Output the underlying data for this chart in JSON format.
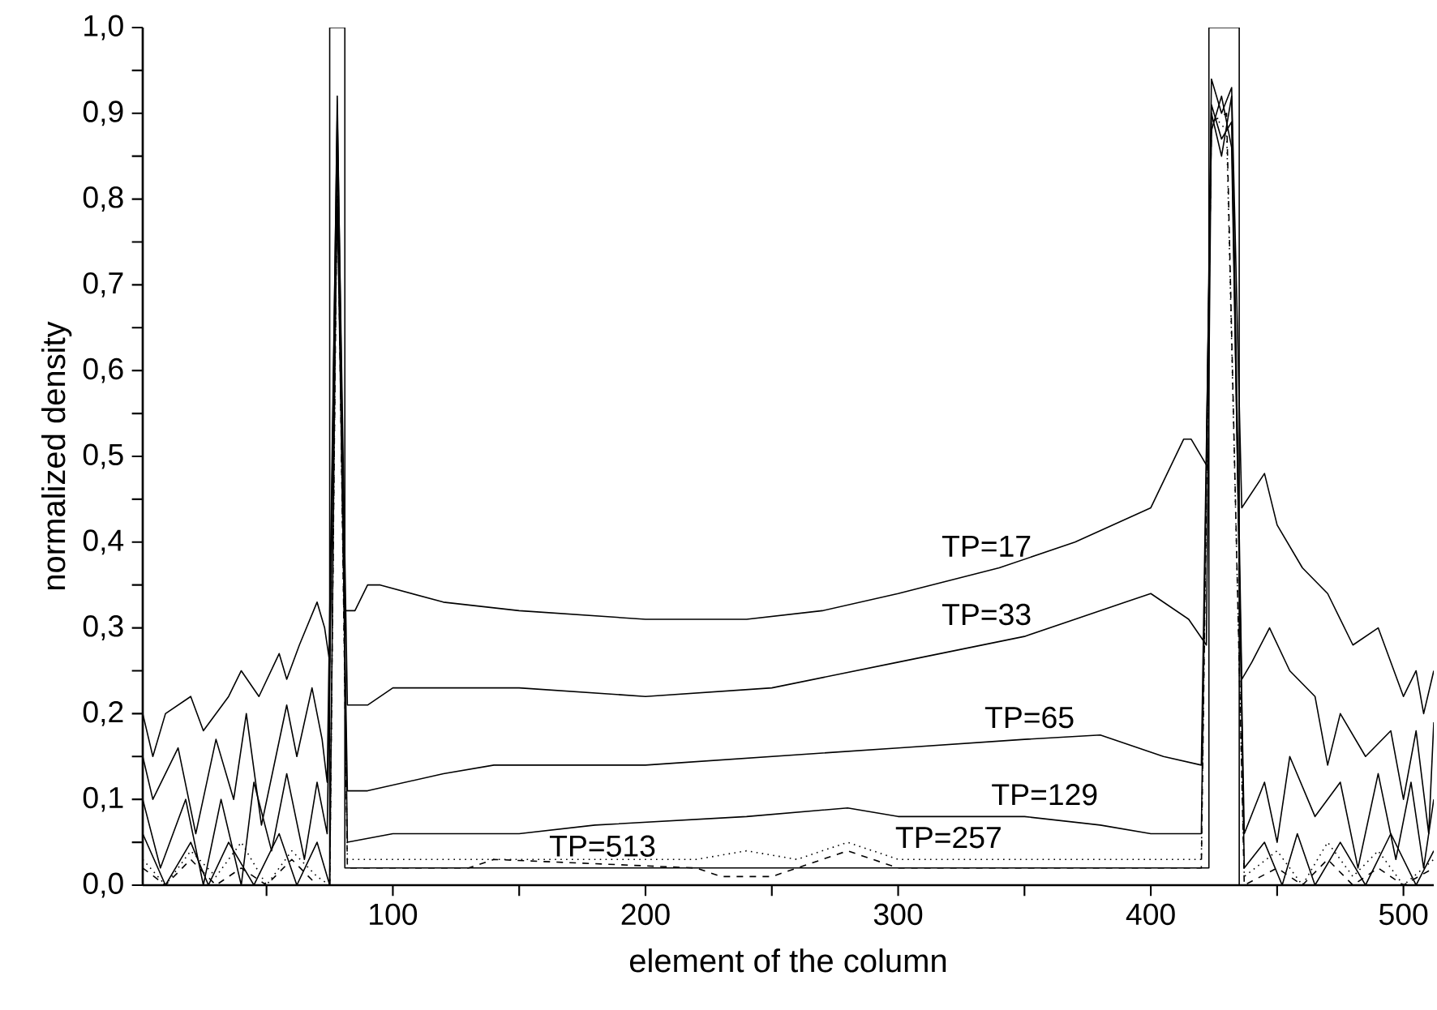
{
  "chart_data": {
    "type": "line",
    "xlabel": "element of the column",
    "ylabel": "normalized density",
    "xlim": [
      1,
      512
    ],
    "ylim": [
      0,
      1
    ],
    "xticks": [
      {
        "value": 50,
        "label": null
      },
      100,
      {
        "value": 150,
        "label": null
      },
      200,
      {
        "value": 250,
        "label": null
      },
      300,
      {
        "value": 350,
        "label": null
      },
      400,
      {
        "value": 450,
        "label": null
      },
      500
    ],
    "yticks": [
      {
        "value": 0,
        "label": "0,0"
      },
      {
        "value": 0.05,
        "label": null
      },
      {
        "value": 0.1,
        "label": "0,1"
      },
      {
        "value": 0.15,
        "label": null
      },
      {
        "value": 0.2,
        "label": "0,2"
      },
      {
        "value": 0.25,
        "label": null
      },
      {
        "value": 0.3,
        "label": "0,3"
      },
      {
        "value": 0.35,
        "label": null
      },
      {
        "value": 0.4,
        "label": "0,4"
      },
      {
        "value": 0.45,
        "label": null
      },
      {
        "value": 0.5,
        "label": "0,5"
      },
      {
        "value": 0.55,
        "label": null
      },
      {
        "value": 0.6,
        "label": "0,6"
      },
      {
        "value": 0.65,
        "label": null
      },
      {
        "value": 0.7,
        "label": "0,7"
      },
      {
        "value": 0.75,
        "label": null
      },
      {
        "value": 0.8,
        "label": "0,8"
      },
      {
        "value": 0.85,
        "label": null
      },
      {
        "value": 0.9,
        "label": "0,9"
      },
      {
        "value": 0.95,
        "label": null
      },
      {
        "value": 1,
        "label": "1,0"
      }
    ],
    "marker": "none",
    "series": [
      {
        "color": "#000000",
        "line_style": "solid",
        "x": [
          75,
          75,
          81,
          81,
          423,
          423,
          435,
          435
        ],
        "values": [
          0,
          1,
          1,
          0.02,
          0.02,
          1,
          1,
          0
        ]
      },
      {
        "name": "TP=17",
        "color": "#000000",
        "line_style": "solid",
        "x": [
          1,
          5,
          10,
          20,
          25,
          35,
          40,
          47,
          55,
          58,
          63,
          70,
          73,
          75,
          78,
          81,
          85,
          90,
          95,
          120,
          150,
          200,
          240,
          270,
          300,
          340,
          370,
          400,
          413,
          416,
          422,
          424,
          428,
          432,
          436,
          445,
          450,
          460,
          470,
          480,
          490,
          500,
          505,
          508,
          512
        ],
        "values": [
          0.2,
          0.15,
          0.2,
          0.22,
          0.18,
          0.22,
          0.25,
          0.22,
          0.27,
          0.24,
          0.28,
          0.33,
          0.3,
          0.26,
          0.92,
          0.32,
          0.32,
          0.35,
          0.35,
          0.33,
          0.32,
          0.31,
          0.31,
          0.32,
          0.34,
          0.37,
          0.4,
          0.44,
          0.52,
          0.52,
          0.49,
          0.94,
          0.9,
          0.93,
          0.44,
          0.48,
          0.42,
          0.37,
          0.34,
          0.28,
          0.3,
          0.22,
          0.25,
          0.2,
          0.25
        ]
      },
      {
        "name": "TP=33",
        "color": "#000000",
        "line_style": "solid",
        "x": [
          1,
          5,
          15,
          22,
          30,
          37,
          42,
          48,
          58,
          62,
          68,
          72,
          74,
          78,
          82,
          90,
          100,
          150,
          200,
          250,
          300,
          350,
          390,
          400,
          415,
          422,
          424,
          428,
          432,
          436,
          440,
          447,
          455,
          465,
          470,
          475,
          485,
          495,
          500,
          505,
          510,
          512
        ],
        "values": [
          0.15,
          0.1,
          0.16,
          0.06,
          0.17,
          0.1,
          0.2,
          0.07,
          0.21,
          0.15,
          0.23,
          0.17,
          0.12,
          0.9,
          0.21,
          0.21,
          0.23,
          0.23,
          0.22,
          0.23,
          0.26,
          0.29,
          0.33,
          0.34,
          0.31,
          0.28,
          0.9,
          0.85,
          0.92,
          0.24,
          0.26,
          0.3,
          0.25,
          0.22,
          0.14,
          0.2,
          0.15,
          0.18,
          0.1,
          0.18,
          0.06,
          0.19
        ]
      },
      {
        "name": "TP=65",
        "color": "#000000",
        "line_style": "solid",
        "x": [
          1,
          8,
          18,
          25,
          32,
          40,
          45,
          52,
          58,
          65,
          70,
          74,
          78,
          82,
          90,
          120,
          140,
          200,
          250,
          300,
          350,
          380,
          405,
          420,
          424,
          428,
          432,
          437,
          445,
          450,
          455,
          465,
          475,
          482,
          490,
          497,
          503,
          508,
          512
        ],
        "values": [
          0.1,
          0.02,
          0.1,
          0,
          0.1,
          0,
          0.12,
          0.04,
          0.13,
          0.03,
          0.12,
          0.06,
          0.8,
          0.11,
          0.11,
          0.13,
          0.14,
          0.14,
          0.15,
          0.16,
          0.17,
          0.175,
          0.15,
          0.14,
          0.88,
          0.92,
          0.86,
          0.06,
          0.12,
          0.05,
          0.15,
          0.08,
          0.12,
          0.02,
          0.13,
          0.03,
          0.12,
          0.02,
          0.1
        ]
      },
      {
        "name": "TP=129",
        "color": "#000000",
        "line_style": "solid",
        "x": [
          1,
          10,
          20,
          27,
          35,
          45,
          55,
          62,
          70,
          75,
          78,
          82,
          100,
          150,
          180,
          240,
          280,
          300,
          350,
          380,
          400,
          420,
          424,
          428,
          432,
          437,
          445,
          452,
          458,
          465,
          475,
          485,
          495,
          505,
          512
        ],
        "values": [
          0.06,
          0,
          0.05,
          0,
          0.05,
          0,
          0.06,
          0,
          0.05,
          0,
          0.88,
          0.05,
          0.06,
          0.06,
          0.07,
          0.08,
          0.09,
          0.08,
          0.08,
          0.07,
          0.06,
          0.06,
          0.91,
          0.87,
          0.89,
          0.02,
          0.05,
          0,
          0.06,
          0,
          0.05,
          0,
          0.06,
          0,
          0.04
        ]
      },
      {
        "name": "TP=257",
        "color": "#000000",
        "line_style": "dotted",
        "x": [
          1,
          10,
          20,
          30,
          40,
          50,
          60,
          70,
          75,
          78,
          82,
          150,
          220,
          240,
          260,
          280,
          300,
          380,
          400,
          420,
          424,
          430,
          437,
          450,
          460,
          470,
          480,
          490,
          500,
          512
        ],
        "values": [
          0.03,
          0,
          0.04,
          0.01,
          0.05,
          0,
          0.04,
          0.01,
          0,
          0.85,
          0.03,
          0.03,
          0.03,
          0.04,
          0.03,
          0.05,
          0.03,
          0.03,
          0.03,
          0.03,
          0.9,
          0.88,
          0.01,
          0.04,
          0,
          0.05,
          0.01,
          0.04,
          0,
          0.03
        ]
      },
      {
        "name": "TP=513",
        "color": "#000000",
        "line_style": "dashed",
        "x": [
          1,
          10,
          20,
          30,
          40,
          50,
          60,
          70,
          75,
          78,
          82,
          130,
          140,
          220,
          230,
          250,
          260,
          280,
          300,
          380,
          400,
          420,
          424,
          430,
          437,
          450,
          460,
          470,
          480,
          490,
          500,
          512
        ],
        "values": [
          0.02,
          0,
          0.03,
          0,
          0.02,
          0,
          0.03,
          0,
          0,
          0.84,
          0.02,
          0.02,
          0.03,
          0.02,
          0.01,
          0.01,
          0.02,
          0.04,
          0.02,
          0.02,
          0.02,
          0.02,
          0.89,
          0.9,
          0,
          0.02,
          0,
          0.03,
          0,
          0.02,
          0,
          0.02
        ]
      }
    ]
  }
}
